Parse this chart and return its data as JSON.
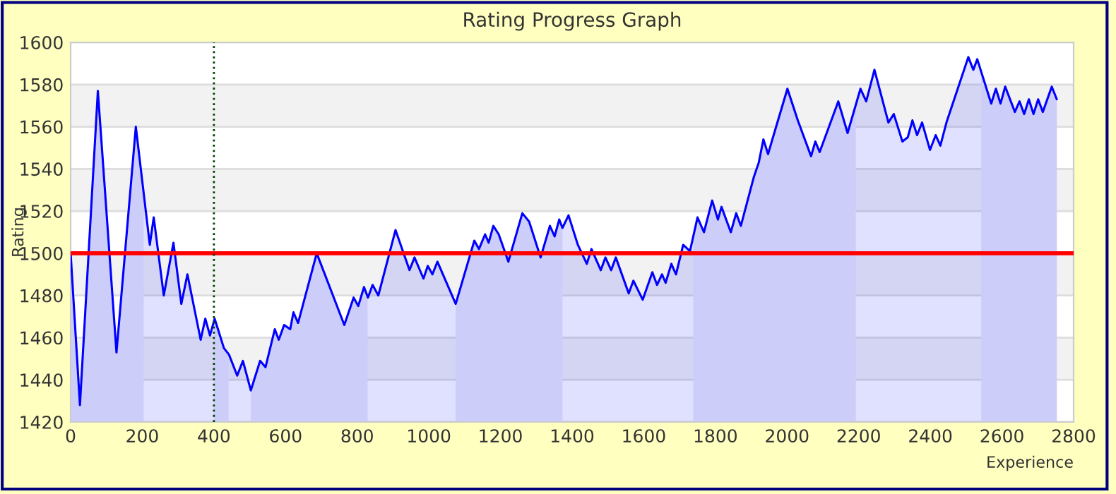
{
  "chart_data": {
    "type": "area",
    "title": "Rating Progress Graph",
    "xlabel": "Experience",
    "ylabel": "Rating",
    "xlim": [
      0,
      2800
    ],
    "xticks": [
      0,
      200,
      400,
      600,
      800,
      1000,
      1200,
      1400,
      1600,
      1800,
      2000,
      2200,
      2400,
      2600,
      2800
    ],
    "ylim": [
      1420,
      1600
    ],
    "yticks": [
      1420,
      1440,
      1460,
      1480,
      1500,
      1520,
      1540,
      1560,
      1580,
      1600
    ],
    "grid": "y",
    "legend": false,
    "series": [
      {
        "color": "#0000ff",
        "x": [
          0,
          26,
          76,
          128,
          182,
          221,
          232,
          260,
          287,
          309,
          326,
          363,
          376,
          389,
          402,
          428,
          442,
          465,
          481,
          503,
          529,
          544,
          570,
          581,
          596,
          613,
          622,
          635,
          687,
          764,
          790,
          803,
          819,
          830,
          843,
          859,
          907,
          946,
          960,
          985,
          997,
          1010,
          1024,
          1075,
          1127,
          1140,
          1157,
          1167,
          1180,
          1195,
          1222,
          1261,
          1280,
          1312,
          1338,
          1351,
          1364,
          1373,
          1390,
          1416,
          1441,
          1454,
          1480,
          1493,
          1509,
          1522,
          1558,
          1571,
          1597,
          1624,
          1637,
          1651,
          1661,
          1677,
          1690,
          1710,
          1729,
          1750,
          1768,
          1791,
          1807,
          1817,
          1843,
          1858,
          1871,
          1907,
          1921,
          1934,
          1947,
          1959,
          2001,
          2030,
          2067,
          2079,
          2091,
          2143,
          2169,
          2205,
          2221,
          2244,
          2283,
          2298,
          2322,
          2337,
          2350,
          2363,
          2377,
          2399,
          2415,
          2428,
          2445,
          2506,
          2520,
          2531,
          2570,
          2583,
          2596,
          2609,
          2636,
          2649,
          2662,
          2675,
          2688,
          2701,
          2714,
          2739,
          2753
        ],
        "values": [
          1500,
          1428,
          1577,
          1453,
          1560,
          1504,
          1517,
          1480,
          1505,
          1476,
          1490,
          1459,
          1469,
          1461,
          1469,
          1455,
          1452,
          1442,
          1449,
          1435,
          1449,
          1446,
          1464,
          1459,
          1466,
          1464,
          1472,
          1467,
          1500,
          1466,
          1479,
          1475,
          1484,
          1479,
          1485,
          1480,
          1511,
          1492,
          1498,
          1488,
          1494,
          1490,
          1496,
          1476,
          1506,
          1502,
          1509,
          1505,
          1513,
          1509,
          1496,
          1519,
          1515,
          1498,
          1513,
          1508,
          1516,
          1512,
          1518,
          1504,
          1495,
          1502,
          1492,
          1498,
          1492,
          1498,
          1481,
          1487,
          1478,
          1491,
          1485,
          1490,
          1486,
          1495,
          1490,
          1504,
          1501,
          1517,
          1510,
          1525,
          1516,
          1522,
          1510,
          1519,
          1513,
          1536,
          1543,
          1554,
          1547,
          1554,
          1578,
          1563,
          1546,
          1553,
          1548,
          1572,
          1557,
          1578,
          1572,
          1587,
          1562,
          1566,
          1553,
          1555,
          1563,
          1556,
          1562,
          1549,
          1556,
          1551,
          1562,
          1593,
          1587,
          1592,
          1571,
          1578,
          1571,
          1579,
          1567,
          1572,
          1566,
          1573,
          1566,
          1573,
          1567,
          1579,
          1573
        ]
      },
      {
        "type": "area",
        "color": "#cdcdf9",
        "x": [
          0,
          26,
          76,
          128,
          182,
          204
        ],
        "values": [
          1500,
          1428,
          1577,
          1453,
          1560,
          1528
        ]
      },
      {
        "type": "area",
        "color": "#cdcdf9",
        "x": [
          400,
          402,
          428,
          441
        ],
        "values": [
          1468,
          1469,
          1455,
          1452
        ]
      },
      {
        "type": "area",
        "color": "#cdcdf9",
        "x": [
          503,
          529,
          544,
          570,
          581,
          596,
          613,
          622,
          635,
          687,
          764,
          790,
          803,
          819,
          829
        ],
        "values": [
          1435,
          1449,
          1446,
          1464,
          1459,
          1466,
          1464,
          1472,
          1467,
          1500,
          1466,
          1479,
          1475,
          1484,
          1479
        ]
      },
      {
        "type": "area",
        "color": "#cdcdf9",
        "x": [
          1075,
          1127,
          1140,
          1157,
          1167,
          1180,
          1195,
          1222,
          1261,
          1280,
          1312,
          1338,
          1351,
          1364,
          1373
        ],
        "values": [
          1476,
          1506,
          1502,
          1509,
          1505,
          1513,
          1509,
          1496,
          1519,
          1515,
          1498,
          1513,
          1508,
          1516,
          1512
        ]
      },
      {
        "type": "area",
        "color": "#cdcdf9",
        "x": [
          1738,
          1750,
          1768,
          1791,
          1807,
          1817,
          1843,
          1858,
          1871,
          1907,
          1921,
          1934,
          1947,
          1959,
          2001,
          2030,
          2067,
          2079,
          2091,
          2143,
          2169,
          2192
        ],
        "values": [
          1508,
          1517,
          1510,
          1525,
          1516,
          1522,
          1510,
          1519,
          1513,
          1536,
          1543,
          1554,
          1547,
          1554,
          1578,
          1563,
          1546,
          1553,
          1548,
          1572,
          1557,
          1570
        ]
      },
      {
        "type": "area",
        "color": "#cdcdf9",
        "x": [
          2542,
          2570,
          2583,
          2596,
          2609,
          2636,
          2649,
          2662,
          2675,
          2688,
          2701,
          2714,
          2739,
          2753
        ],
        "values": [
          1586,
          1571,
          1578,
          1571,
          1579,
          1567,
          1572,
          1566,
          1573,
          1566,
          1573,
          1567,
          1579,
          1573
        ]
      }
    ],
    "ref_lines": [
      {
        "axis": "y",
        "value": 1500,
        "color": "#ff0000",
        "line_style": "solid"
      },
      {
        "axis": "x",
        "value": 400,
        "color": "#004000",
        "line_style": "dotted"
      }
    ]
  }
}
